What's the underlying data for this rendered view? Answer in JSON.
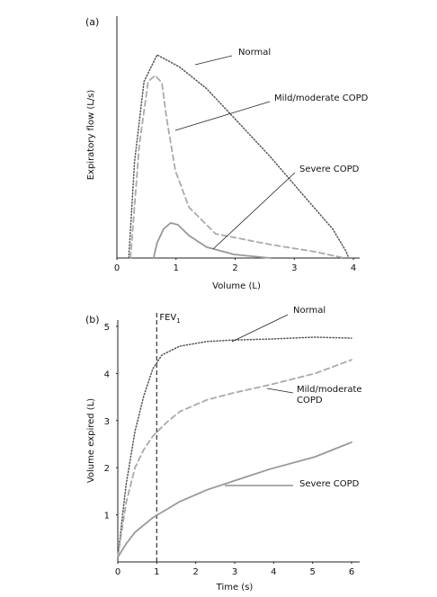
{
  "chart_data": [
    {
      "type": "line",
      "panel": "(a)",
      "x_label": "Volume (L)",
      "y_label": "Expiratory flow (L/s)",
      "xlim": [
        0,
        4
      ],
      "xticks": [
        0,
        1,
        2,
        3,
        4
      ],
      "ylim": [
        0,
        10
      ],
      "series": [
        {
          "name": "Normal",
          "color": "#555555",
          "linestyle": "dotted",
          "x": [
            0.2,
            0.3,
            0.46,
            0.68,
            1.06,
            1.52,
            1.98,
            2.59,
            3.19,
            3.65,
            3.88,
            3.92
          ],
          "values": [
            0,
            4.0,
            7.3,
            8.4,
            7.9,
            7.0,
            5.8,
            4.2,
            2.5,
            1.2,
            0.26,
            0
          ]
        },
        {
          "name": "Mild/moderate COPD",
          "color": "#aaaaaa",
          "linestyle": "dashed",
          "x": [
            0.23,
            0.38,
            0.53,
            0.65,
            0.76,
            0.84,
            0.99,
            1.22,
            1.67,
            2.59,
            3.35,
            3.85
          ],
          "values": [
            0,
            4.7,
            7.3,
            7.55,
            7.25,
            5.8,
            3.6,
            2.1,
            1.0,
            0.56,
            0.26,
            0
          ]
        },
        {
          "name": "Severe COPD",
          "color": "#999999",
          "linestyle": "solid",
          "x": [
            0.62,
            0.68,
            0.79,
            0.91,
            1.03,
            1.22,
            1.52,
            1.98,
            2.59
          ],
          "values": [
            0,
            0.63,
            1.2,
            1.45,
            1.38,
            0.93,
            0.45,
            0.15,
            0
          ]
        }
      ]
    },
    {
      "type": "line",
      "panel": "(b)",
      "x_label": "Time (s)",
      "y_label": "Volume expired (L)",
      "xlim": [
        0,
        6
      ],
      "xticks": [
        0,
        1,
        2,
        3,
        4,
        5,
        6
      ],
      "ylim": [
        0,
        5.2
      ],
      "yticks": [
        1,
        2,
        3,
        4,
        5
      ],
      "marker_line": {
        "x": 1,
        "label": "FEV",
        "subscript": "1"
      },
      "series": [
        {
          "name": "Normal",
          "color": "#555555",
          "linestyle": "dotted",
          "x": [
            0,
            0.21,
            0.44,
            0.67,
            0.9,
            1.13,
            1.59,
            2.29,
            2.98,
            3.9,
            5.06,
            6
          ],
          "values": [
            0.1,
            1.62,
            2.77,
            3.53,
            4.1,
            4.39,
            4.58,
            4.68,
            4.71,
            4.73,
            4.77,
            4.75
          ]
        },
        {
          "name": "Mild/moderate COPD",
          "color": "#aaaaaa",
          "linestyle": "dashed",
          "x": [
            0,
            0.21,
            0.44,
            0.67,
            0.9,
            1.25,
            1.59,
            2.29,
            2.98,
            3.9,
            5.06,
            6
          ],
          "values": [
            0.1,
            1.24,
            2.0,
            2.39,
            2.67,
            2.96,
            3.19,
            3.44,
            3.59,
            3.76,
            4.0,
            4.29
          ]
        },
        {
          "name": "Severe COPD",
          "color": "#999999",
          "linestyle": "solid",
          "x": [
            0,
            0.21,
            0.44,
            0.9,
            1.59,
            2.29,
            2.98,
            3.9,
            5.06,
            6
          ],
          "values": [
            0.1,
            0.38,
            0.63,
            0.94,
            1.28,
            1.53,
            1.72,
            1.97,
            2.23,
            2.54
          ]
        }
      ]
    }
  ]
}
